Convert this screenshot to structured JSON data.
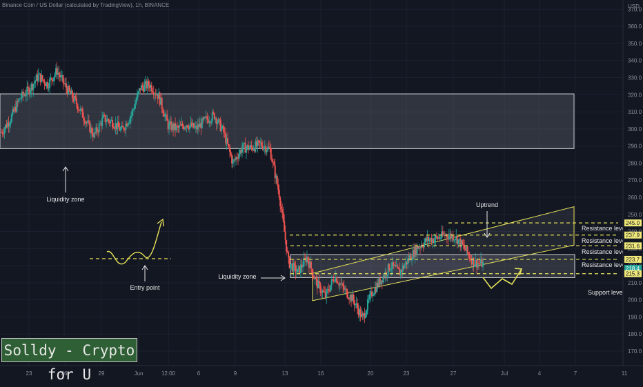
{
  "header": "Binance Coin / US Dollar (calculated by TradingView), 1h, BINANCE",
  "currency": "USD",
  "watermark": "Solldy - Crypto for U",
  "colors": {
    "background": "#131722",
    "up_candle": "#26a69a",
    "down_candle": "#ef5350",
    "annotation": "#e8e35a",
    "zone_fill": "#9aa0aa",
    "label_yellow": "#f1ea7a",
    "label_green": "#26a69a"
  },
  "chart_data": {
    "type": "line",
    "title": "Binance Coin / US Dollar (calculated by TradingView), 1h, BINANCE",
    "yaxis_ticks": [
      170.0,
      180.0,
      190.0,
      200.0,
      210.0,
      220.0,
      230.0,
      240.0,
      250.0,
      260.0,
      270.0,
      280.0,
      290.0,
      300.0,
      310.0,
      320.0,
      330.0,
      340.0,
      350.0,
      360.0,
      370.0
    ],
    "ylim": [
      168,
      378
    ],
    "xaxis_ticks": [
      "23",
      "26",
      "29",
      "Jun",
      "12:00",
      "6",
      "9",
      "13",
      "16",
      "20",
      "23",
      "27",
      "Jul",
      "4",
      "7",
      "11"
    ],
    "series": [
      {
        "values": [
          298,
          306,
          318,
          323,
          331,
          326,
          334,
          324,
          316,
          306,
          296,
          306,
          304,
          299,
          308,
          324,
          326,
          319,
          302,
          300,
          303,
          300,
          305,
          308,
          298,
          280,
          289,
          289,
          291,
          288,
          262,
          222,
          216,
          225,
          210,
          202,
          214,
          206,
          200,
          189,
          204,
          212,
          220,
          216,
          224,
          231,
          235,
          236,
          238,
          237,
          230,
          222,
          221
        ]
      }
    ],
    "price_labels": [
      {
        "value": 245.0,
        "text": "245.0",
        "style": "yellow"
      },
      {
        "value": 237.9,
        "text": "237.9",
        "style": "yellow"
      },
      {
        "value": 231.6,
        "text": "231.6",
        "style": "yellow"
      },
      {
        "value": 223.7,
        "text": "223.7",
        "style": "yellow"
      },
      {
        "value": 218.4,
        "text": "218.4",
        "style": "green"
      },
      {
        "value": 215.3,
        "text": "215.3",
        "style": "yellow"
      }
    ],
    "annotations": {
      "liquidity_zone_1": "Liquidity zone",
      "liquidity_zone_2": "Liquidity zone",
      "entry_point": "Entry point",
      "uptrend": "Uptrend",
      "resistance_1": "Resistance level",
      "resistance_2": "Resistance level",
      "resistance_3": "Resistance level",
      "resistance_4": "Resistance level",
      "support": "Support level"
    }
  }
}
